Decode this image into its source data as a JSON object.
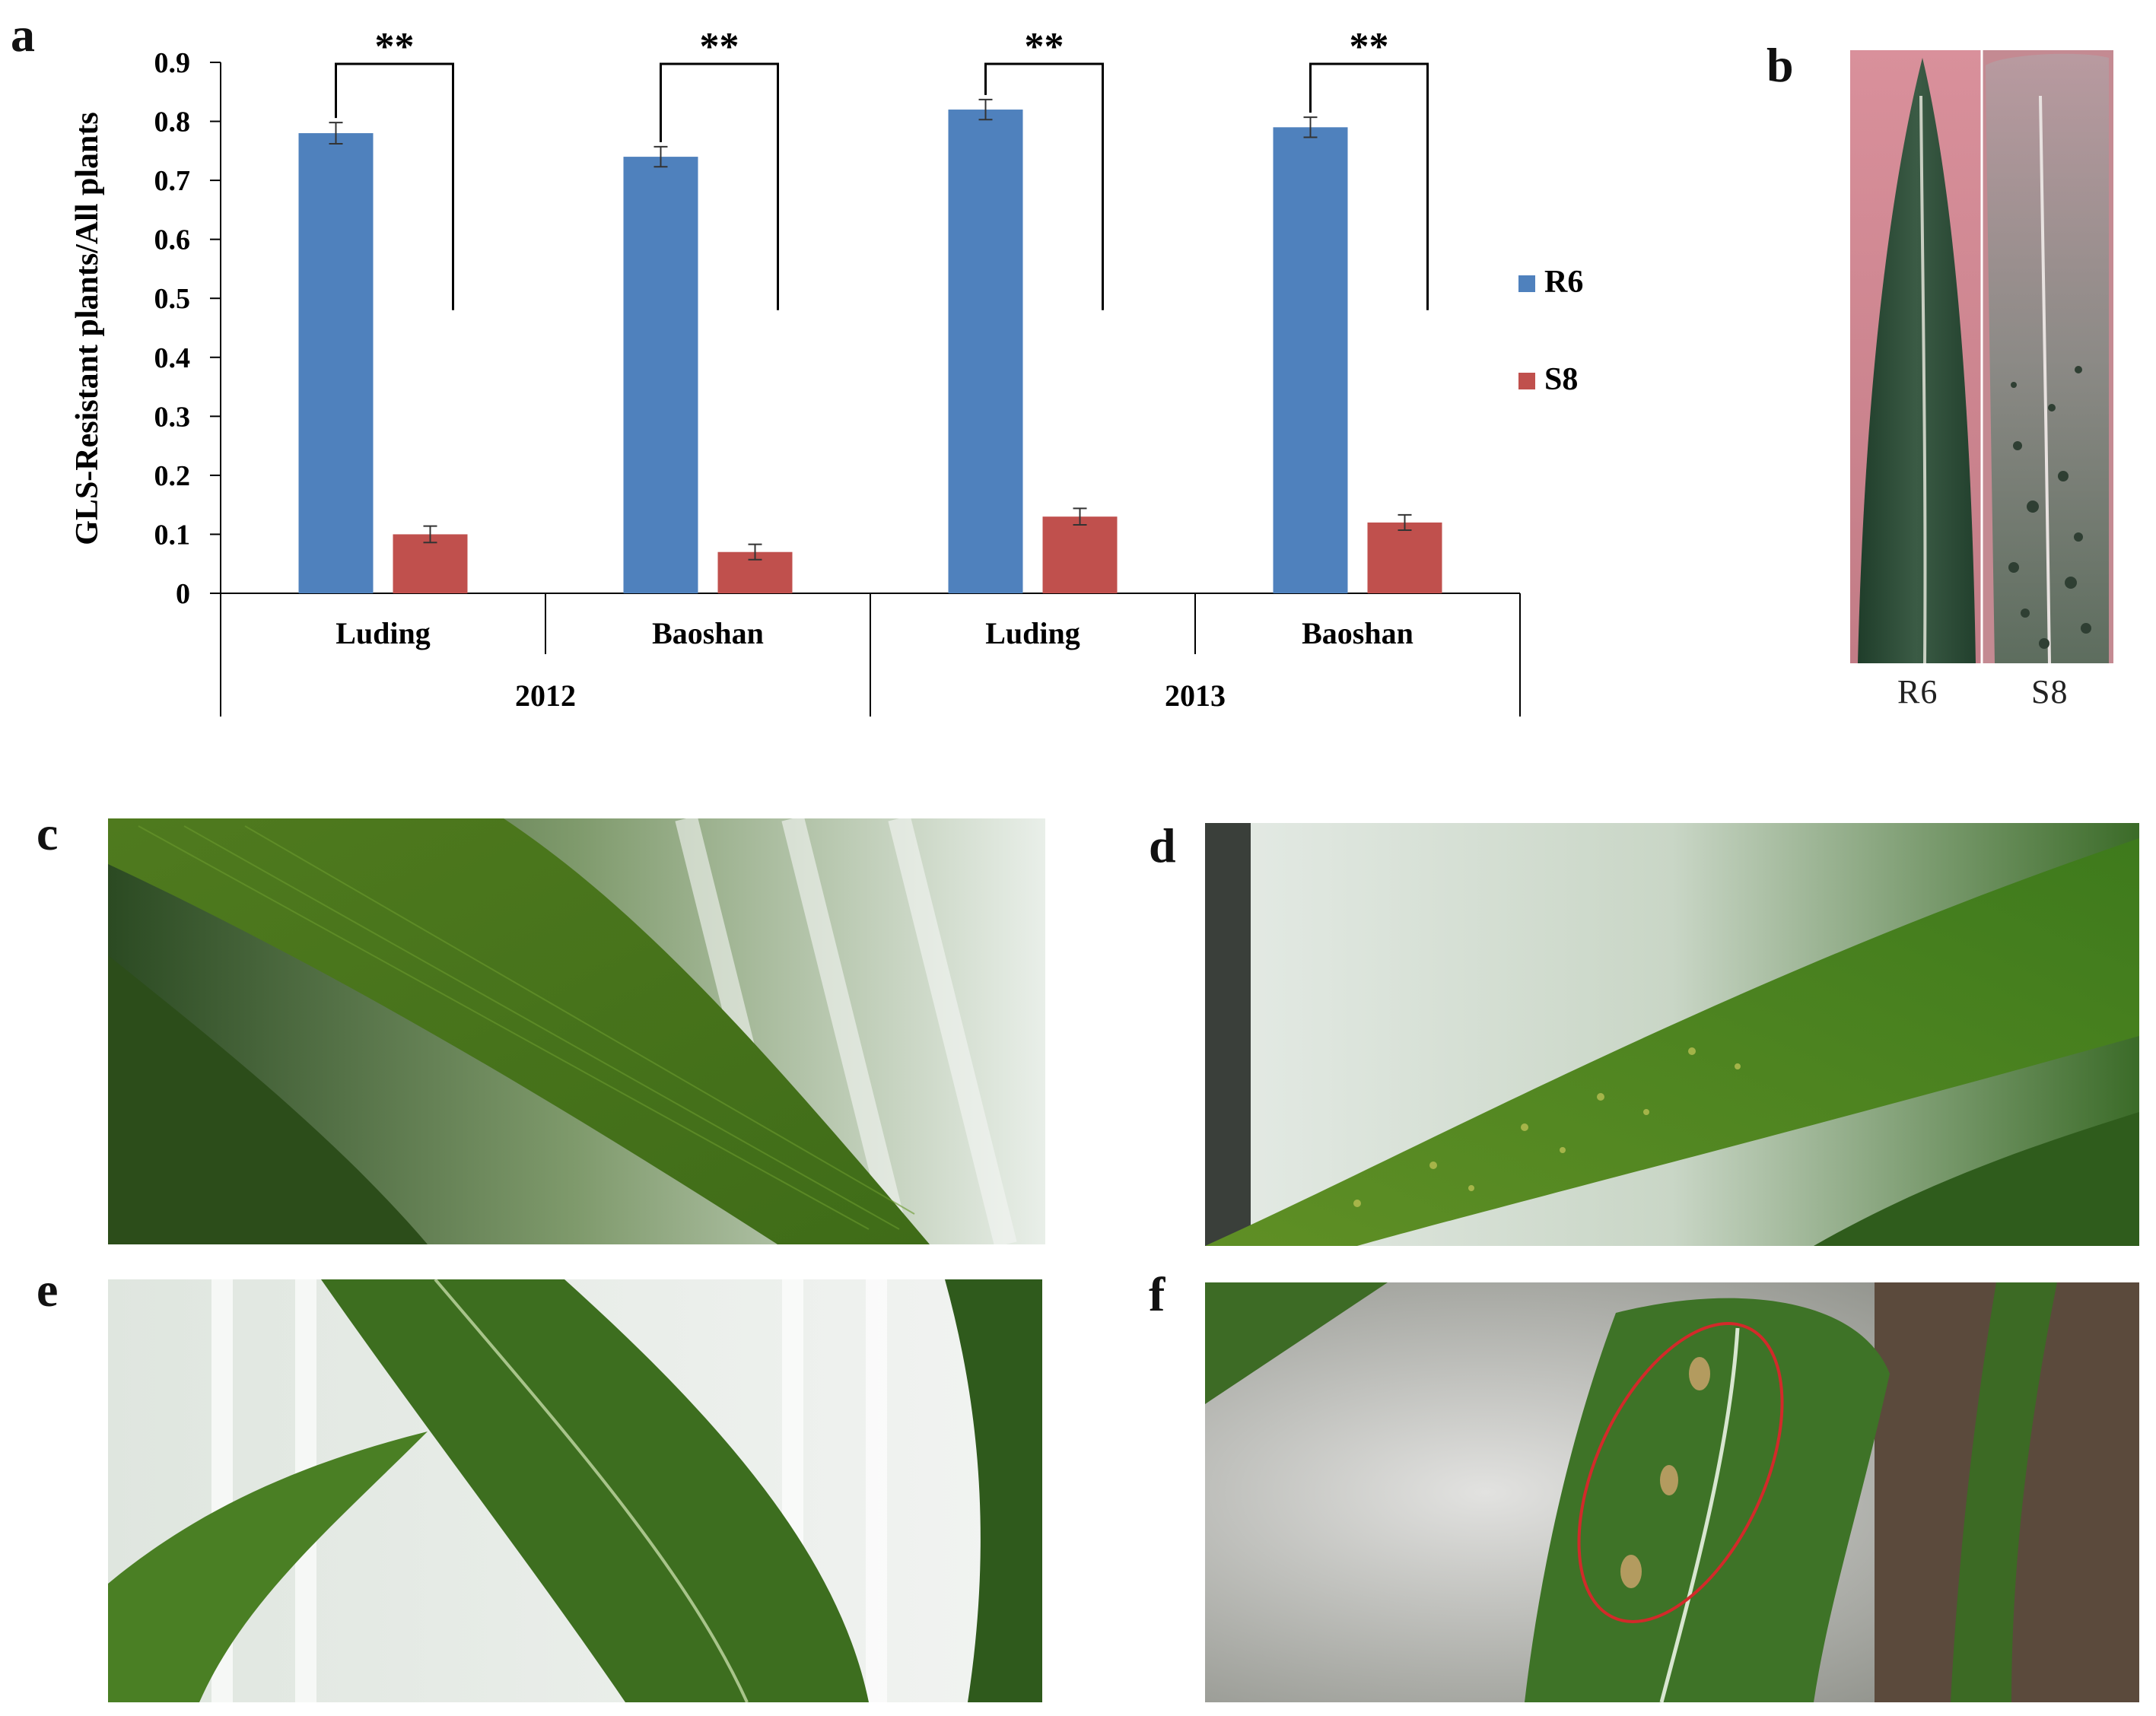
{
  "panels": {
    "a": "a",
    "b": "b",
    "c": "c",
    "d": "d",
    "e": "e",
    "f": "f"
  },
  "chart_data": {
    "type": "bar",
    "ylabel": "GLS-Resistant plants/All plants",
    "ylim": [
      0,
      0.9
    ],
    "yticks": [
      "0",
      "0.1",
      "0.2",
      "0.3",
      "0.4",
      "0.5",
      "0.6",
      "0.7",
      "0.8",
      "0.9"
    ],
    "categories": [
      "Luding",
      "Baoshan",
      "Luding",
      "Baoshan"
    ],
    "groups": [
      {
        "label": "2012",
        "categories": [
          "Luding",
          "Baoshan"
        ]
      },
      {
        "label": "2013",
        "categories": [
          "Luding",
          "Baoshan"
        ]
      }
    ],
    "series": [
      {
        "name": "R6",
        "color": "#4F81BD",
        "values": [
          0.78,
          0.74,
          0.82,
          0.79
        ],
        "errors": [
          0.018,
          0.017,
          0.017,
          0.017
        ]
      },
      {
        "name": "S8",
        "color": "#C0504D",
        "values": [
          0.1,
          0.07,
          0.13,
          0.12
        ],
        "errors": [
          0.014,
          0.013,
          0.014,
          0.013
        ]
      }
    ],
    "significance": [
      "**",
      "**",
      "**",
      "**"
    ],
    "legend_position": "right",
    "grid": false
  },
  "leaf_photo": {
    "labels": [
      "R6",
      "S8"
    ]
  }
}
